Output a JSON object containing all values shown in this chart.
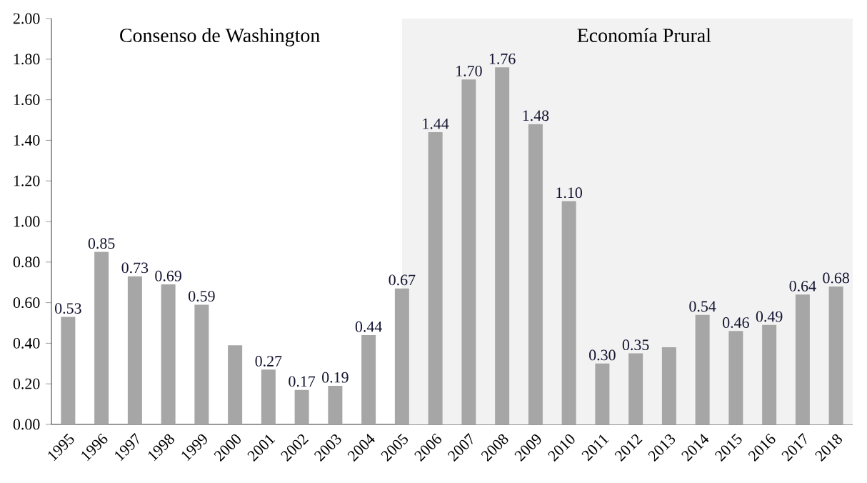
{
  "chart_data": {
    "type": "bar",
    "categories": [
      "1995",
      "1996",
      "1997",
      "1998",
      "1999",
      "2000",
      "2001",
      "2002",
      "2003",
      "2004",
      "2005",
      "2006",
      "2007",
      "2008",
      "2009",
      "2010",
      "2011",
      "2012",
      "2013",
      "2014",
      "2015",
      "2016",
      "2017",
      "2018"
    ],
    "values": [
      0.53,
      0.85,
      0.73,
      0.69,
      0.59,
      0.39,
      0.27,
      0.17,
      0.19,
      0.44,
      0.67,
      1.44,
      1.7,
      1.76,
      1.48,
      1.1,
      0.3,
      0.35,
      0.38,
      0.54,
      0.46,
      0.49,
      0.64,
      0.68
    ],
    "value_labels": [
      "0.53",
      "0.85",
      "0.73",
      "0.69",
      "0.59",
      null,
      "0.27",
      "0.17",
      "0.19",
      "0.44",
      "0.67",
      "1.44",
      "1.70",
      "1.76",
      "1.48",
      "1.10",
      "0.30",
      "0.35",
      null,
      "0.54",
      "0.46",
      "0.49",
      "0.64",
      "0.68"
    ],
    "color": "#a6a6a6",
    "ylim": [
      0,
      2
    ],
    "yticks": [
      {
        "value": 0,
        "label": "0.00"
      },
      {
        "value": 0.2,
        "label": "0.20"
      },
      {
        "value": 0.4,
        "label": "0.40"
      },
      {
        "value": 0.6,
        "label": "0.60"
      },
      {
        "value": 0.8,
        "label": "0.80"
      },
      {
        "value": 1,
        "label": "1.00"
      },
      {
        "value": 1.2,
        "label": "1.20"
      },
      {
        "value": 1.4,
        "label": "1.40"
      },
      {
        "value": 1.6,
        "label": "1.60"
      },
      {
        "value": 1.8,
        "label": "1.80"
      },
      {
        "value": 2,
        "label": "2.00"
      }
    ],
    "bands": [
      {
        "axis": "x",
        "from": "2005",
        "to": "2018",
        "label": "Economía Prural",
        "color": "#f2f2f2"
      }
    ],
    "annotations": [
      "Consenso de Washington"
    ],
    "grid": false
  }
}
